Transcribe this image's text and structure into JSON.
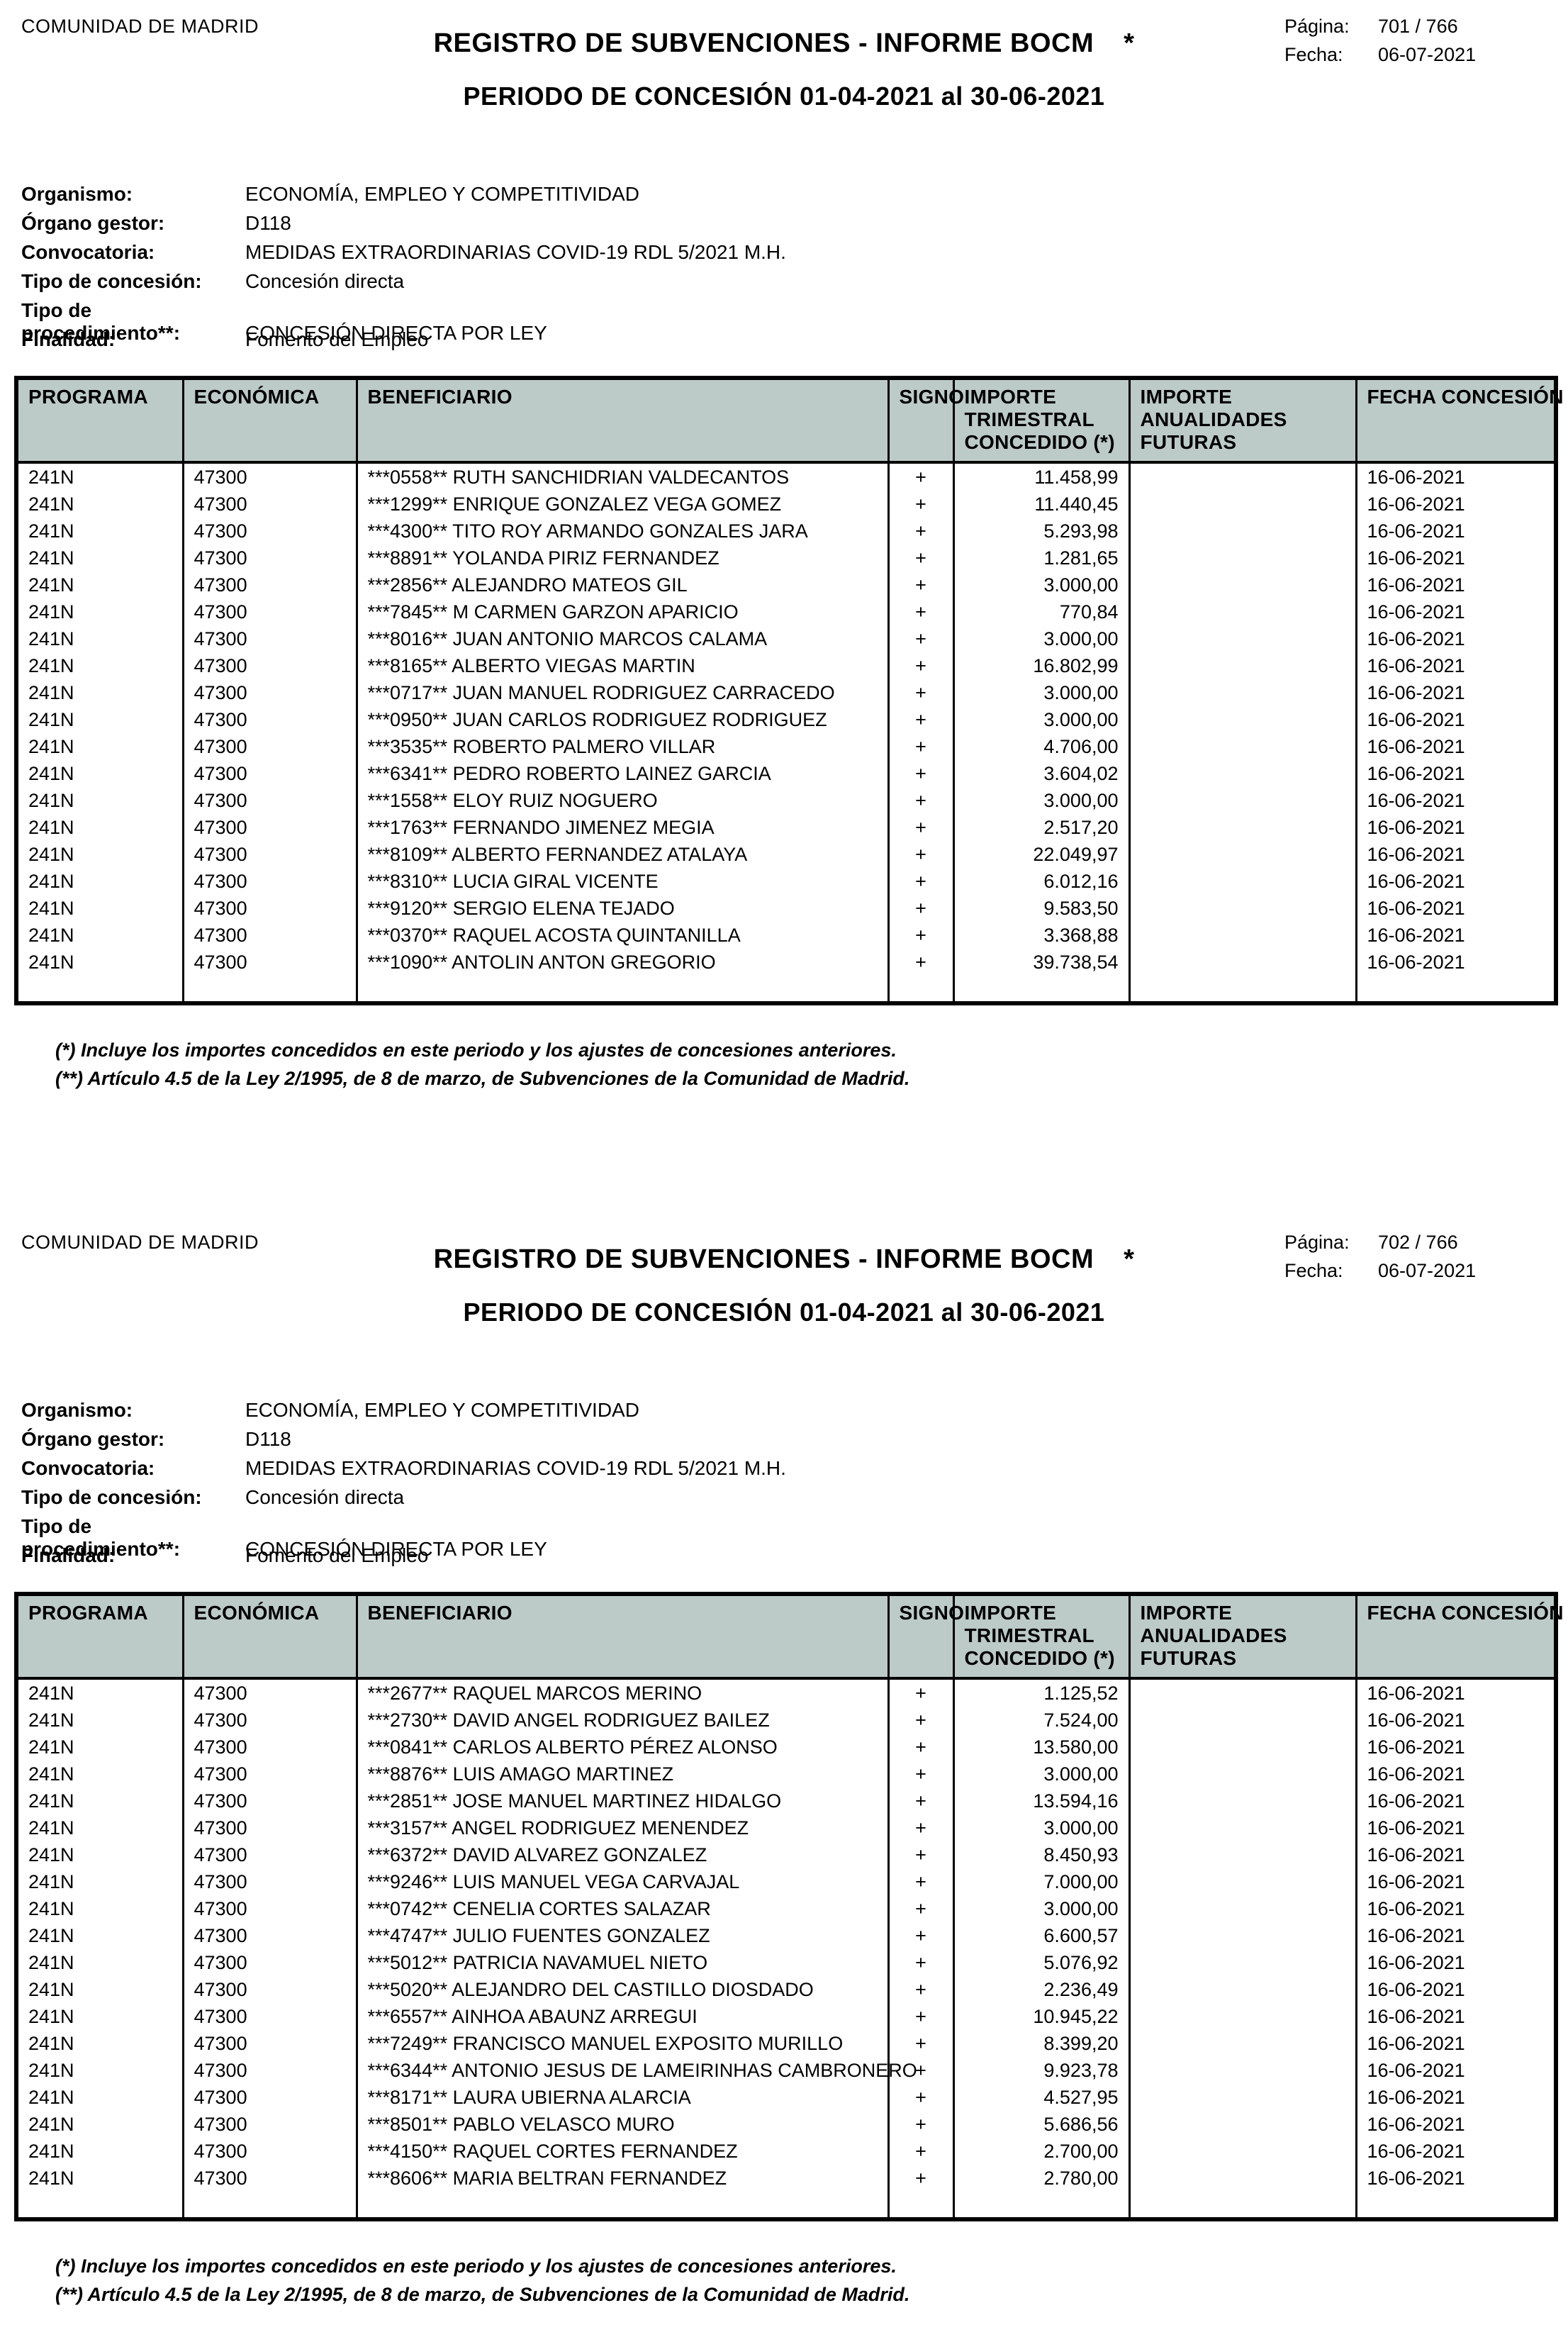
{
  "colors": {
    "table_header_bg": "#bccac8",
    "border": "#000000",
    "page_bg": "#ffffff"
  },
  "pages": [
    {
      "entity": "COMUNIDAD DE MADRID",
      "page_label": "Página:",
      "page_value": "701 / 766",
      "date_label": "Fecha:",
      "date_value": "06-07-2021",
      "title": "REGISTRO DE SUBVENCIONES - INFORME BOCM",
      "title_asterisk": "*",
      "subtitle": "PERIODO DE CONCESIÓN 01-04-2021 al 30-06-2021",
      "meta": [
        {
          "label": "Organismo:",
          "value": "ECONOMÍA, EMPLEO Y COMPETITIVIDAD"
        },
        {
          "label": "Órgano gestor:",
          "value": "D118"
        },
        {
          "label": "Convocatoria:",
          "value": "MEDIDAS EXTRAORDINARIAS COVID-19 RDL 5/2021 M.H."
        },
        {
          "label": "Tipo de concesión:",
          "value": "Concesión directa"
        },
        {
          "label": "Tipo de procedimiento**:",
          "value": "CONCESIÓN DIRECTA POR LEY"
        },
        {
          "label": "Finalidad:",
          "value": "Fomento del Empleo"
        }
      ],
      "table": {
        "headers": [
          "PROGRAMA",
          "ECONÓMICA",
          "BENEFICIARIO",
          "SIGNO",
          "IMPORTE TRIMESTRAL CONCEDIDO (*)",
          "IMPORTE ANUALIDADES FUTURAS",
          "FECHA CONCESIÓN"
        ],
        "rows": [
          [
            "241N",
            "47300",
            "***0558** RUTH SANCHIDRIAN VALDECANTOS",
            "+",
            "11.458,99",
            "",
            "16-06-2021"
          ],
          [
            "241N",
            "47300",
            "***1299** ENRIQUE GONZALEZ VEGA GOMEZ",
            "+",
            "11.440,45",
            "",
            "16-06-2021"
          ],
          [
            "241N",
            "47300",
            "***4300** TITO ROY ARMANDO GONZALES JARA",
            "+",
            "5.293,98",
            "",
            "16-06-2021"
          ],
          [
            "241N",
            "47300",
            "***8891** YOLANDA PIRIZ FERNANDEZ",
            "+",
            "1.281,65",
            "",
            "16-06-2021"
          ],
          [
            "241N",
            "47300",
            "***2856** ALEJANDRO MATEOS GIL",
            "+",
            "3.000,00",
            "",
            "16-06-2021"
          ],
          [
            "241N",
            "47300",
            "***7845** M CARMEN GARZON APARICIO",
            "+",
            "770,84",
            "",
            "16-06-2021"
          ],
          [
            "241N",
            "47300",
            "***8016** JUAN ANTONIO MARCOS CALAMA",
            "+",
            "3.000,00",
            "",
            "16-06-2021"
          ],
          [
            "241N",
            "47300",
            "***8165** ALBERTO VIEGAS MARTIN",
            "+",
            "16.802,99",
            "",
            "16-06-2021"
          ],
          [
            "241N",
            "47300",
            "***0717** JUAN MANUEL RODRIGUEZ CARRACEDO",
            "+",
            "3.000,00",
            "",
            "16-06-2021"
          ],
          [
            "241N",
            "47300",
            "***0950** JUAN CARLOS RODRIGUEZ RODRIGUEZ",
            "+",
            "3.000,00",
            "",
            "16-06-2021"
          ],
          [
            "241N",
            "47300",
            "***3535** ROBERTO PALMERO VILLAR",
            "+",
            "4.706,00",
            "",
            "16-06-2021"
          ],
          [
            "241N",
            "47300",
            "***6341** PEDRO ROBERTO LAINEZ GARCIA",
            "+",
            "3.604,02",
            "",
            "16-06-2021"
          ],
          [
            "241N",
            "47300",
            "***1558** ELOY RUIZ NOGUERO",
            "+",
            "3.000,00",
            "",
            "16-06-2021"
          ],
          [
            "241N",
            "47300",
            "***1763** FERNANDO JIMENEZ MEGIA",
            "+",
            "2.517,20",
            "",
            "16-06-2021"
          ],
          [
            "241N",
            "47300",
            "***8109** ALBERTO FERNANDEZ ATALAYA",
            "+",
            "22.049,97",
            "",
            "16-06-2021"
          ],
          [
            "241N",
            "47300",
            "***8310** LUCIA GIRAL VICENTE",
            "+",
            "6.012,16",
            "",
            "16-06-2021"
          ],
          [
            "241N",
            "47300",
            "***9120** SERGIO ELENA TEJADO",
            "+",
            "9.583,50",
            "",
            "16-06-2021"
          ],
          [
            "241N",
            "47300",
            "***0370** RAQUEL ACOSTA QUINTANILLA",
            "+",
            "3.368,88",
            "",
            "16-06-2021"
          ],
          [
            "241N",
            "47300",
            "***1090** ANTOLIN ANTON GREGORIO",
            "+",
            "39.738,54",
            "",
            "16-06-2021"
          ]
        ]
      },
      "footnotes": [
        "(*) Incluye los importes concedidos en este periodo y los ajustes de concesiones anteriores.",
        "(**) Artículo 4.5 de la Ley 2/1995, de 8 de marzo, de Subvenciones de la Comunidad de Madrid."
      ]
    },
    {
      "entity": "COMUNIDAD DE MADRID",
      "page_label": "Página:",
      "page_value": "702 / 766",
      "date_label": "Fecha:",
      "date_value": "06-07-2021",
      "title": "REGISTRO DE SUBVENCIONES - INFORME BOCM",
      "title_asterisk": "*",
      "subtitle": "PERIODO DE CONCESIÓN 01-04-2021 al 30-06-2021",
      "meta": [
        {
          "label": "Organismo:",
          "value": "ECONOMÍA, EMPLEO Y COMPETITIVIDAD"
        },
        {
          "label": "Órgano gestor:",
          "value": "D118"
        },
        {
          "label": "Convocatoria:",
          "value": "MEDIDAS EXTRAORDINARIAS COVID-19 RDL 5/2021 M.H."
        },
        {
          "label": "Tipo de concesión:",
          "value": "Concesión directa"
        },
        {
          "label": "Tipo de procedimiento**:",
          "value": "CONCESIÓN DIRECTA POR LEY"
        },
        {
          "label": "Finalidad:",
          "value": "Fomento del Empleo"
        }
      ],
      "table": {
        "headers": [
          "PROGRAMA",
          "ECONÓMICA",
          "BENEFICIARIO",
          "SIGNO",
          "IMPORTE TRIMESTRAL CONCEDIDO (*)",
          "IMPORTE ANUALIDADES FUTURAS",
          "FECHA CONCESIÓN"
        ],
        "rows": [
          [
            "241N",
            "47300",
            "***2677** RAQUEL MARCOS MERINO",
            "+",
            "1.125,52",
            "",
            "16-06-2021"
          ],
          [
            "241N",
            "47300",
            "***2730** DAVID ANGEL RODRIGUEZ BAILEZ",
            "+",
            "7.524,00",
            "",
            "16-06-2021"
          ],
          [
            "241N",
            "47300",
            "***0841** CARLOS ALBERTO PÉREZ ALONSO",
            "+",
            "13.580,00",
            "",
            "16-06-2021"
          ],
          [
            "241N",
            "47300",
            "***8876** LUIS AMAGO MARTINEZ",
            "+",
            "3.000,00",
            "",
            "16-06-2021"
          ],
          [
            "241N",
            "47300",
            "***2851** JOSE MANUEL MARTINEZ HIDALGO",
            "+",
            "13.594,16",
            "",
            "16-06-2021"
          ],
          [
            "241N",
            "47300",
            "***3157** ANGEL RODRIGUEZ MENENDEZ",
            "+",
            "3.000,00",
            "",
            "16-06-2021"
          ],
          [
            "241N",
            "47300",
            "***6372** DAVID ALVAREZ GONZALEZ",
            "+",
            "8.450,93",
            "",
            "16-06-2021"
          ],
          [
            "241N",
            "47300",
            "***9246** LUIS MANUEL VEGA CARVAJAL",
            "+",
            "7.000,00",
            "",
            "16-06-2021"
          ],
          [
            "241N",
            "47300",
            "***0742** CENELIA CORTES SALAZAR",
            "+",
            "3.000,00",
            "",
            "16-06-2021"
          ],
          [
            "241N",
            "47300",
            "***4747** JULIO FUENTES GONZALEZ",
            "+",
            "6.600,57",
            "",
            "16-06-2021"
          ],
          [
            "241N",
            "47300",
            "***5012** PATRICIA NAVAMUEL NIETO",
            "+",
            "5.076,92",
            "",
            "16-06-2021"
          ],
          [
            "241N",
            "47300",
            "***5020** ALEJANDRO DEL CASTILLO DIOSDADO",
            "+",
            "2.236,49",
            "",
            "16-06-2021"
          ],
          [
            "241N",
            "47300",
            "***6557** AINHOA ABAUNZ ARREGUI",
            "+",
            "10.945,22",
            "",
            "16-06-2021"
          ],
          [
            "241N",
            "47300",
            "***7249** FRANCISCO MANUEL EXPOSITO MURILLO",
            "+",
            "8.399,20",
            "",
            "16-06-2021"
          ],
          [
            "241N",
            "47300",
            "***6344** ANTONIO JESUS DE LAMEIRINHAS CAMBRONERO",
            "+",
            "9.923,78",
            "",
            "16-06-2021"
          ],
          [
            "241N",
            "47300",
            "***8171** LAURA UBIERNA ALARCIA",
            "+",
            "4.527,95",
            "",
            "16-06-2021"
          ],
          [
            "241N",
            "47300",
            "***8501** PABLO VELASCO MURO",
            "+",
            "5.686,56",
            "",
            "16-06-2021"
          ],
          [
            "241N",
            "47300",
            "***4150** RAQUEL CORTES FERNANDEZ",
            "+",
            "2.700,00",
            "",
            "16-06-2021"
          ],
          [
            "241N",
            "47300",
            "***8606** MARIA BELTRAN FERNANDEZ",
            "+",
            "2.780,00",
            "",
            "16-06-2021"
          ]
        ]
      },
      "footnotes": [
        "(*) Incluye los importes concedidos en este periodo y los ajustes de concesiones anteriores.",
        "(**) Artículo 4.5 de la Ley 2/1995, de 8 de marzo, de Subvenciones de la Comunidad de Madrid."
      ]
    }
  ]
}
